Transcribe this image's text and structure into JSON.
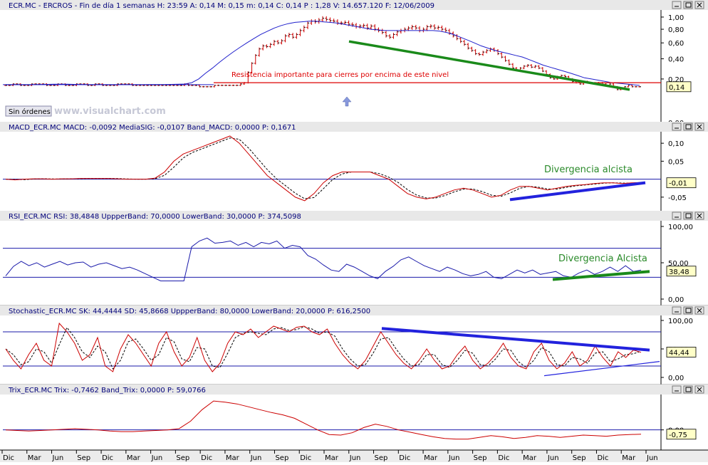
{
  "chart_data": [
    {
      "id": "price",
      "type": "candlestick",
      "title": "ECR.MC - ERCROS - Fin de día 1 semanas H: 23:59  A: 0,14  M: 0,15  m: 0,14  C: 0,14  P : 1,28  V: 14.657.120  F: 12/06/2009",
      "y_scale": "log",
      "ylim": [
        0.0,
        1.1
      ],
      "ticks": [
        "1,00",
        "0,80",
        "0,60",
        "0,40",
        "0,20",
        "0,00"
      ],
      "tick_values": [
        1.0,
        0.8,
        0.6,
        0.4,
        0.2,
        0.0
      ],
      "current_label": "0,14",
      "button_label": "Sin órdenes",
      "watermark": "www.visualchart.com",
      "annotation": "Resistencia importante para cierres por encima de este nivel",
      "resistance_level": 0.17,
      "close_approx": [
        0.15,
        0.15,
        0.16,
        0.16,
        0.15,
        0.15,
        0.15,
        0.16,
        0.16,
        0.16,
        0.16,
        0.15,
        0.15,
        0.15,
        0.16,
        0.16,
        0.15,
        0.15,
        0.15,
        0.16,
        0.16,
        0.16,
        0.15,
        0.15,
        0.16,
        0.16,
        0.15,
        0.15,
        0.15,
        0.15,
        0.16,
        0.16,
        0.16,
        0.16,
        0.15,
        0.15,
        0.15,
        0.15,
        0.15,
        0.15,
        0.15,
        0.15,
        0.15,
        0.15,
        0.15,
        0.15,
        0.15,
        0.15,
        0.16,
        0.15,
        0.15,
        0.15,
        0.14,
        0.14,
        0.14,
        0.14,
        0.15,
        0.15,
        0.15,
        0.15,
        0.15,
        0.15,
        0.15,
        0.16,
        0.17,
        0.26,
        0.35,
        0.44,
        0.52,
        0.56,
        0.55,
        0.58,
        0.62,
        0.6,
        0.63,
        0.7,
        0.72,
        0.68,
        0.72,
        0.78,
        0.83,
        0.9,
        0.93,
        0.92,
        0.95,
        0.98,
        0.96,
        0.94,
        0.93,
        0.9,
        0.9,
        0.91,
        0.88,
        0.87,
        0.84,
        0.85,
        0.86,
        0.82,
        0.85,
        0.8,
        0.78,
        0.75,
        0.7,
        0.68,
        0.72,
        0.76,
        0.78,
        0.8,
        0.82,
        0.84,
        0.82,
        0.78,
        0.8,
        0.84,
        0.85,
        0.82,
        0.83,
        0.8,
        0.78,
        0.74,
        0.7,
        0.66,
        0.62,
        0.58,
        0.53,
        0.5,
        0.46,
        0.45,
        0.48,
        0.5,
        0.52,
        0.5,
        0.46,
        0.42,
        0.38,
        0.34,
        0.3,
        0.28,
        0.3,
        0.32,
        0.33,
        0.31,
        0.32,
        0.3,
        0.27,
        0.24,
        0.21,
        0.2,
        0.22,
        0.23,
        0.22,
        0.2,
        0.18,
        0.17,
        0.16,
        0.18,
        0.17,
        0.17,
        0.16,
        0.17,
        0.16,
        0.15,
        0.16,
        0.14,
        0.12,
        0.13,
        0.14,
        0.15,
        0.14,
        0.14,
        0.14
      ],
      "ma_approx": [
        0.155,
        0.155,
        0.155,
        0.155,
        0.155,
        0.156,
        0.157,
        0.158,
        0.158,
        0.158,
        0.157,
        0.156,
        0.155,
        0.155,
        0.155,
        0.155,
        0.155,
        0.155,
        0.155,
        0.155,
        0.155,
        0.156,
        0.156,
        0.156,
        0.157,
        0.158,
        0.16,
        0.17,
        0.2,
        0.25,
        0.3,
        0.36,
        0.42,
        0.48,
        0.54,
        0.6,
        0.66,
        0.72,
        0.77,
        0.82,
        0.86,
        0.89,
        0.91,
        0.92,
        0.93,
        0.93,
        0.92,
        0.91,
        0.9,
        0.88,
        0.86,
        0.84,
        0.82,
        0.8,
        0.79,
        0.78,
        0.78,
        0.78,
        0.78,
        0.78,
        0.78,
        0.78,
        0.78,
        0.77,
        0.75,
        0.72,
        0.68,
        0.64,
        0.6,
        0.56,
        0.53,
        0.5,
        0.48,
        0.46,
        0.44,
        0.42,
        0.39,
        0.36,
        0.33,
        0.31,
        0.29,
        0.27,
        0.25,
        0.23,
        0.21,
        0.2,
        0.19,
        0.18,
        0.17,
        0.165,
        0.16,
        0.155,
        0.15
      ]
    },
    {
      "id": "macd",
      "type": "line",
      "title": "MACD_ECR.MC  MACD: -0,0092  MediaSIG: -0,0107  Band_MACD: 0,0000  P: 0,1671",
      "ylim": [
        -0.08,
        0.13
      ],
      "ticks": [
        "0,10",
        "0,05",
        "-0,05"
      ],
      "tick_values": [
        0.1,
        0.05,
        -0.05
      ],
      "current_label": "-0,01",
      "annotation": "Divergencia alcista",
      "values_approx": [
        0,
        -0.002,
        0,
        0.001,
        0.001,
        0,
        0.001,
        0.001,
        0.002,
        0.002,
        0.002,
        0.002,
        0.001,
        0,
        0,
        0,
        0.003,
        0.02,
        0.05,
        0.07,
        0.08,
        0.09,
        0.1,
        0.11,
        0.12,
        0.1,
        0.07,
        0.04,
        0.01,
        -0.01,
        -0.03,
        -0.05,
        -0.06,
        -0.04,
        -0.01,
        0.01,
        0.02,
        0.02,
        0.02,
        0.02,
        0.01,
        0,
        -0.02,
        -0.04,
        -0.05,
        -0.055,
        -0.05,
        -0.04,
        -0.03,
        -0.025,
        -0.03,
        -0.04,
        -0.05,
        -0.045,
        -0.03,
        -0.02,
        -0.02,
        -0.025,
        -0.03,
        -0.025,
        -0.02,
        -0.017,
        -0.015,
        -0.012,
        -0.01,
        -0.01,
        -0.012,
        -0.01,
        -0.009
      ]
    },
    {
      "id": "rsi",
      "type": "line",
      "title": "RSI_ECR.MC  RSI: 38,4848  UppperBand: 70,0000  LowerBand: 30,0000  P: 374,5098",
      "ylim": [
        0,
        100
      ],
      "ticks": [
        "100,00",
        "50,00",
        "0,00"
      ],
      "tick_values": [
        100,
        50,
        0
      ],
      "upper_band": 70,
      "lower_band": 30,
      "current_label": "38,48",
      "annotation": "Divergencia Alcista",
      "values_approx": [
        32,
        45,
        52,
        46,
        50,
        44,
        48,
        52,
        47,
        50,
        51,
        44,
        48,
        50,
        46,
        42,
        44,
        40,
        35,
        30,
        25,
        25,
        25,
        25,
        72,
        80,
        84,
        77,
        78,
        80,
        74,
        78,
        72,
        78,
        76,
        80,
        70,
        74,
        72,
        60,
        55,
        47,
        40,
        38,
        48,
        44,
        38,
        32,
        28,
        38,
        45,
        54,
        58,
        52,
        46,
        42,
        38,
        44,
        40,
        35,
        32,
        34,
        38,
        30,
        28,
        34,
        40,
        36,
        40,
        34,
        36,
        38,
        32,
        30,
        36,
        40,
        34,
        38,
        44,
        38,
        46,
        38,
        40
      ]
    },
    {
      "id": "stochastic",
      "type": "line",
      "title": "Stochastic_ECR.MC  SK: 44,4444  SD: 45,8668  UppperBand: 80,0000  LowerBand: 20,0000  P: 616,2500",
      "ylim": [
        0,
        100
      ],
      "ticks": [
        "100,00",
        "50,00",
        "0,00"
      ],
      "tick_values": [
        100,
        50,
        0
      ],
      "upper_band": 80,
      "lower_band": 20,
      "current_label": "44,44",
      "values_approx": [
        50,
        30,
        15,
        40,
        60,
        30,
        20,
        95,
        80,
        60,
        30,
        40,
        70,
        20,
        10,
        50,
        75,
        60,
        40,
        20,
        60,
        80,
        45,
        20,
        35,
        70,
        30,
        10,
        25,
        60,
        80,
        75,
        85,
        70,
        80,
        90,
        85,
        80,
        88,
        90,
        80,
        75,
        85,
        60,
        40,
        25,
        15,
        30,
        55,
        80,
        60,
        40,
        25,
        15,
        30,
        50,
        30,
        15,
        20,
        40,
        55,
        30,
        15,
        25,
        40,
        60,
        35,
        20,
        15,
        45,
        60,
        30,
        15,
        25,
        45,
        20,
        30,
        55,
        35,
        20,
        45,
        35,
        48,
        44
      ]
    },
    {
      "id": "trix",
      "type": "line",
      "title": "Trix_ECR.MC  Trix: -0,7462  Band_Trix: 0,0000  P: 59,0766",
      "ylim": [
        -3,
        6
      ],
      "ticks": [
        "0,00"
      ],
      "tick_values": [
        0
      ],
      "current_label": "-0,75",
      "values_approx": [
        0,
        -0.1,
        -0.2,
        -0.1,
        0,
        0.1,
        0.2,
        0.1,
        0,
        -0.2,
        -0.3,
        -0.3,
        -0.2,
        -0.1,
        0,
        0.2,
        1.5,
        3.5,
        5,
        4.8,
        4.5,
        4,
        3.5,
        3,
        2.6,
        2,
        1,
        0,
        -0.8,
        -0.9,
        -0.5,
        0.4,
        1,
        0.6,
        0,
        -0.4,
        -0.8,
        -1.2,
        -1.5,
        -1.6,
        -1.6,
        -1.3,
        -1,
        -1.2,
        -1.5,
        -1.3,
        -1,
        -1.1,
        -1.3,
        -1.1,
        -0.9,
        -1,
        -1.1,
        -0.9,
        -0.8,
        -0.75
      ]
    }
  ],
  "x_axis_labels": [
    "Dic",
    "Mar",
    "Jun",
    "Sep",
    "Dic",
    "Mar",
    "Jun",
    "Sep",
    "Dic",
    "Mar",
    "Jun",
    "Sep",
    "Dic",
    "Mar",
    "Jun",
    "Sep",
    "Dic",
    "Mar",
    "Jun",
    "Sep",
    "Dic",
    "Mar",
    "Jun",
    "Sep",
    "Dic",
    "Mar",
    "Jun"
  ],
  "colors": {
    "price_bars": "#cc0000",
    "moving_average": "#2020cc",
    "trend_green": "#1a8a1a",
    "trend_blue": "#2222dd",
    "resistance": "#dd0000",
    "band_line": "#1a1aaa",
    "indicator_main": "#cc0000",
    "indicator_signal": "#000000",
    "rsi_line": "#1a1aaa",
    "label_box": "#ffffc8",
    "header_bg": "#e8e8e8"
  }
}
